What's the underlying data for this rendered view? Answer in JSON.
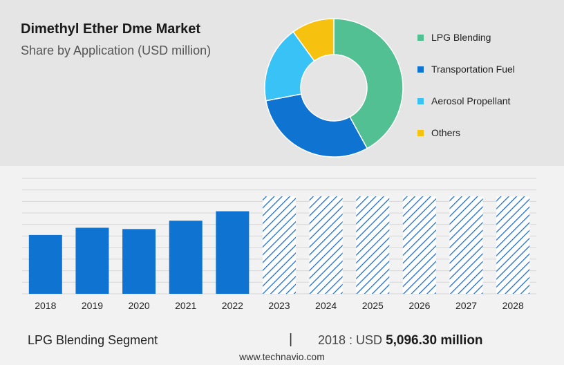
{
  "header": {
    "title": "Dimethyl Ether Dme Market",
    "subtitle": "Share by Application (USD million)"
  },
  "colors": {
    "lpg_blending": "#52c093",
    "transportation_fuel": "#0f74d1",
    "aerosol_propellant": "#38c2f5",
    "others": "#f7c20f",
    "bar": "#0f74d1",
    "forecast_hatch": "#1e6ec8",
    "gridline": "#d6d6d6"
  },
  "chart_data": [
    {
      "type": "pie",
      "donut": true,
      "categories": [
        "LPG Blending",
        "Transportation Fuel",
        "Aerosol Propellant",
        "Others"
      ],
      "values": [
        42,
        30,
        18,
        10
      ],
      "legend_position": "right"
    },
    {
      "type": "bar",
      "categories": [
        "2018",
        "2019",
        "2020",
        "2021",
        "2022",
        "2023",
        "2024",
        "2025",
        "2026",
        "2027",
        "2028"
      ],
      "values": [
        5096.3,
        5720,
        5610,
        6330,
        7150,
        8440,
        8440,
        8440,
        8440,
        8440,
        8440
      ],
      "forecast_from": "2023",
      "ylim": [
        0,
        10000
      ],
      "grid": true
    }
  ],
  "footer": {
    "segment_label": "LPG Blending Segment",
    "divider": "|",
    "stat_prefix": "2018 : USD",
    "stat_value": "5,096.30 million",
    "source": "www.technavio.com"
  }
}
